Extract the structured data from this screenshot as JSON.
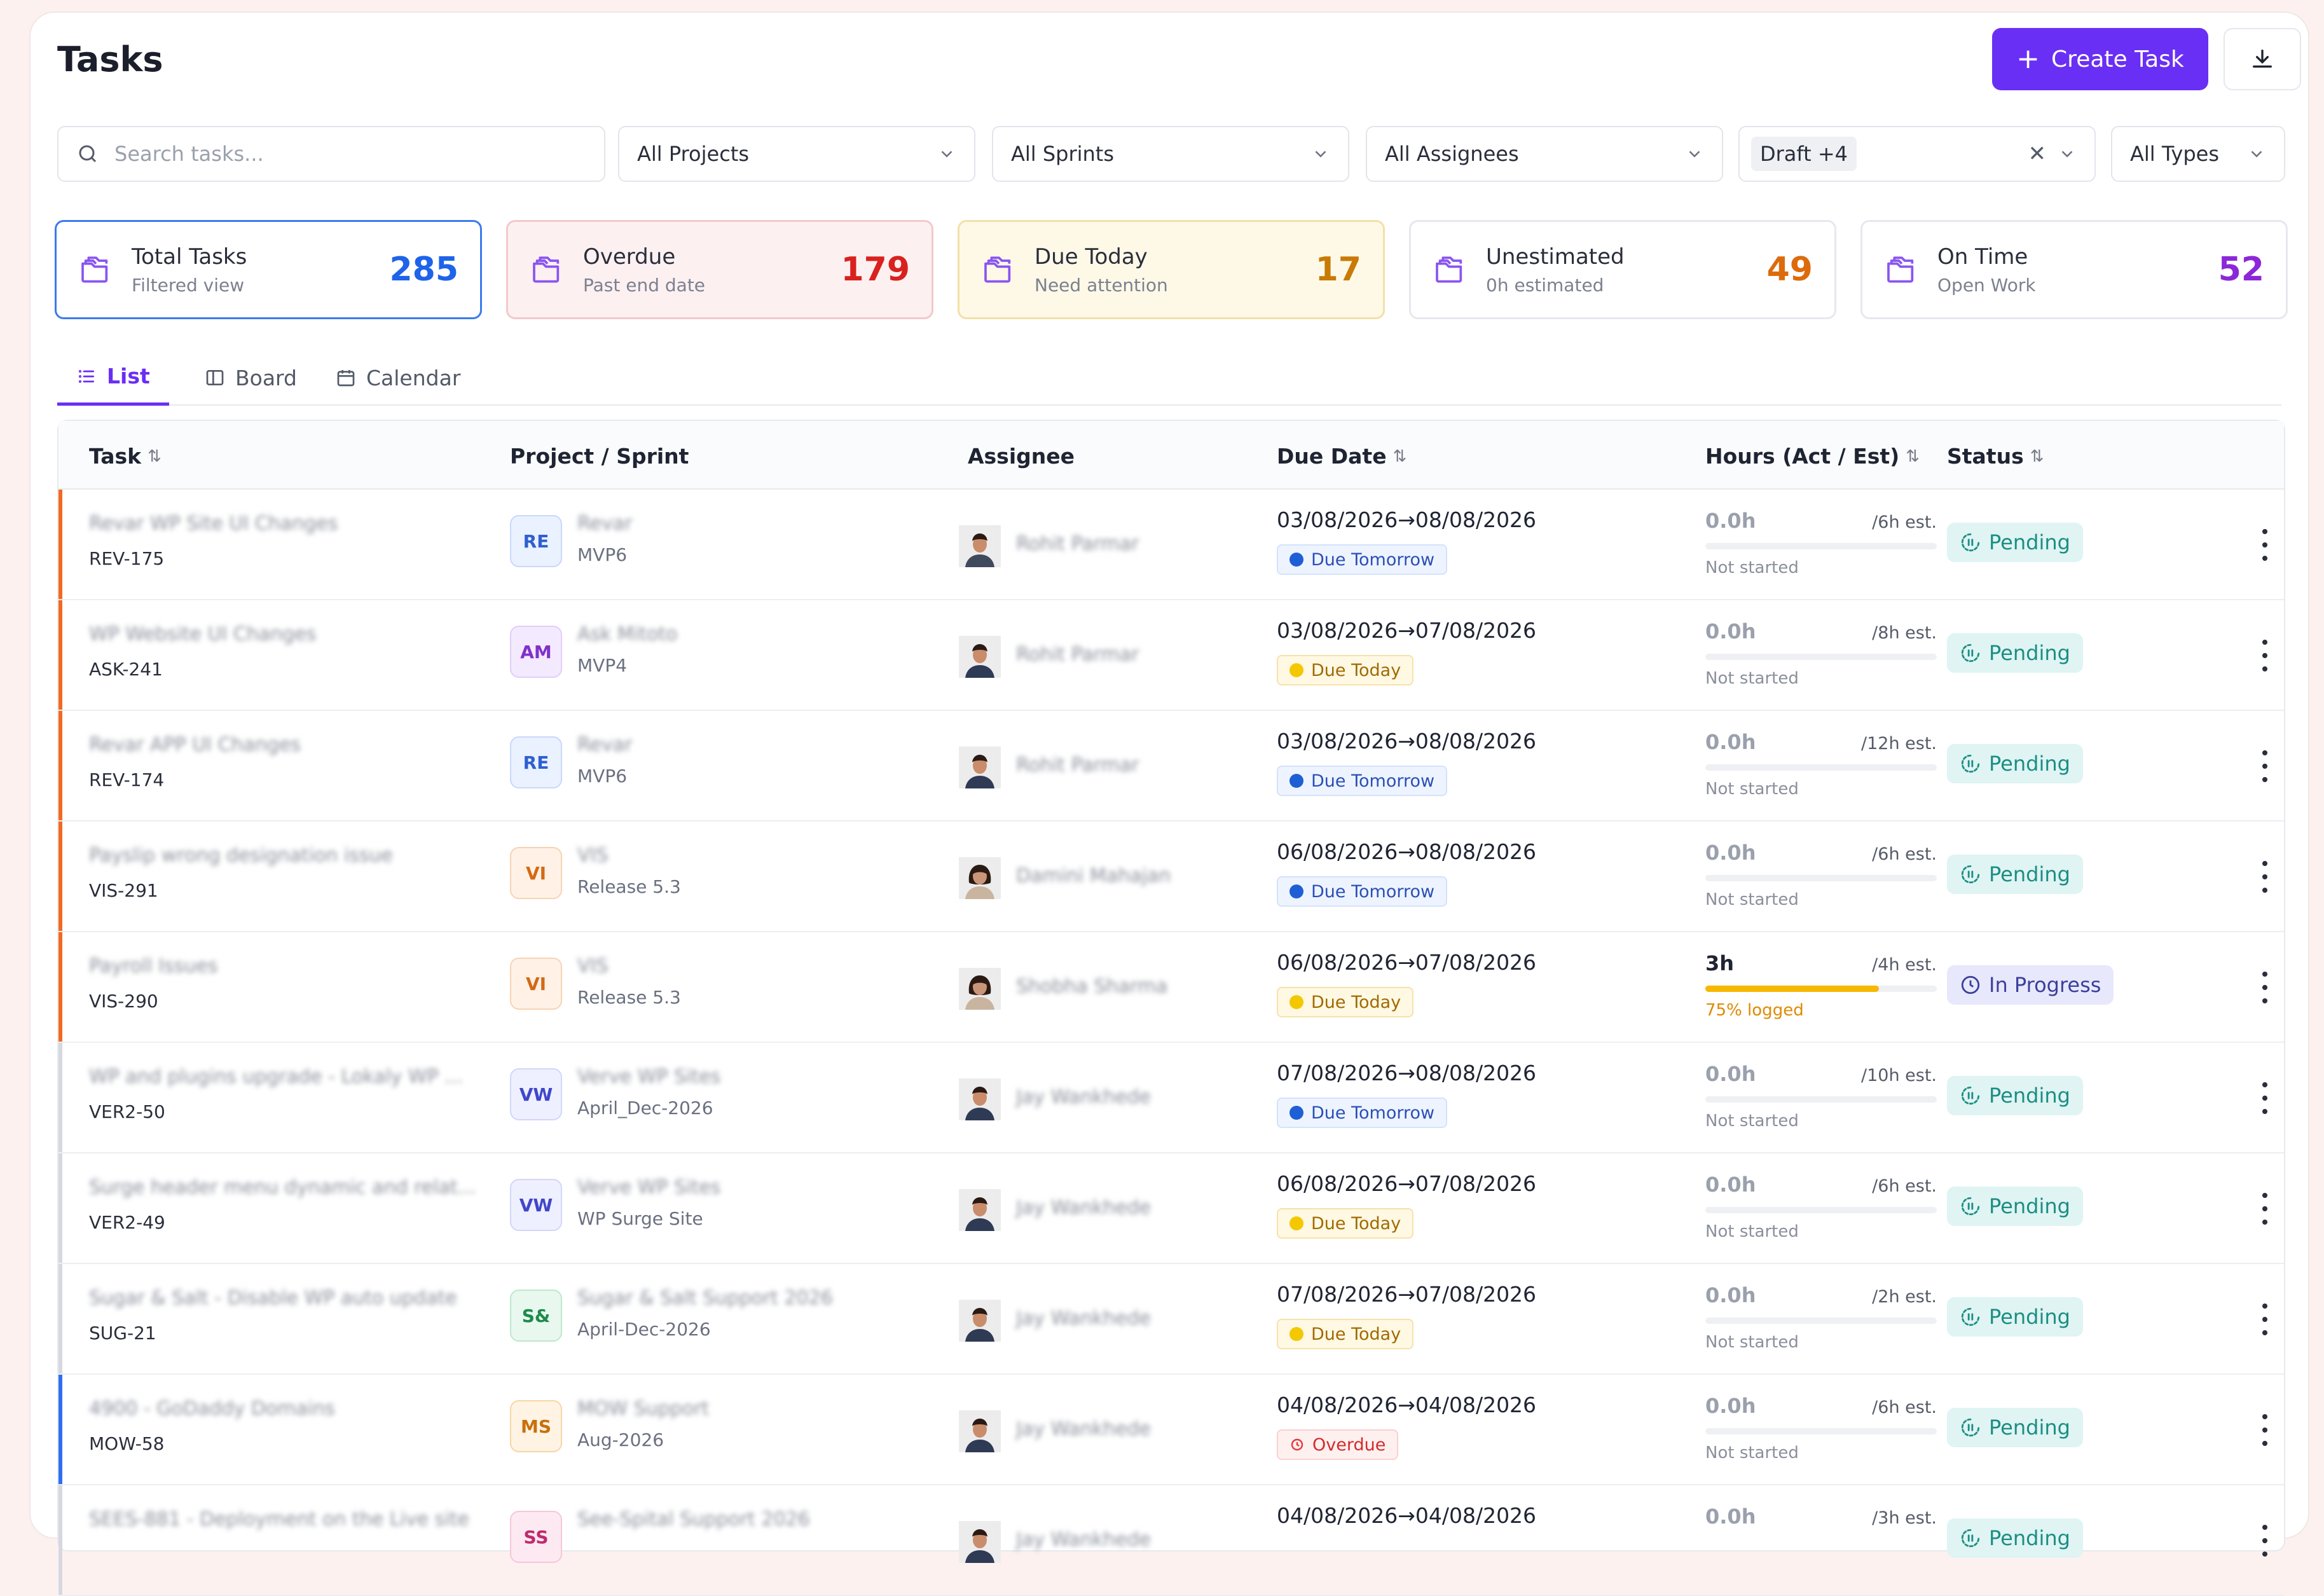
{
  "header": {
    "title": "Tasks",
    "create_label": "Create Task"
  },
  "filters": {
    "search_placeholder": "Search tasks...",
    "projects": "All Projects",
    "sprints": "All Sprints",
    "assignees": "All Assignees",
    "status_chip": "Draft +4",
    "types": "All Types"
  },
  "stats": [
    {
      "name": "Total Tasks",
      "sub": "Filtered view",
      "value": "285",
      "color": "#1e63e9",
      "border": "#3a7bef",
      "bg": "#ffffff"
    },
    {
      "name": "Overdue",
      "sub": "Past end date",
      "value": "179",
      "color": "#d9211e",
      "border": "#f2c9cb",
      "bg": "#fdf0f1"
    },
    {
      "name": "Due Today",
      "sub": "Need attention",
      "value": "17",
      "color": "#c87a05",
      "border": "#f3e0a8",
      "bg": "#fef9e7"
    },
    {
      "name": "Unestimated",
      "sub": "0h estimated",
      "value": "49",
      "color": "#dd6b0c",
      "border": "#e6e8ee",
      "bg": "#ffffff"
    },
    {
      "name": "On Time",
      "sub": "Open Work",
      "value": "52",
      "color": "#8c27d8",
      "border": "#e6e8ee",
      "bg": "#ffffff"
    }
  ],
  "tabs": {
    "list": "List",
    "board": "Board",
    "calendar": "Calendar"
  },
  "columns": {
    "task": "Task",
    "project": "Project / Sprint",
    "assignee": "Assignee",
    "due": "Due Date",
    "hours": "Hours (Act / Est)",
    "status": "Status"
  },
  "rows": [
    {
      "task": "Revar WP Site UI Changes",
      "id": "REV-175",
      "abbr": "RE",
      "project": "Revar",
      "sprint": "MVP6",
      "assignee": "Rohit Parmar",
      "dates": "03/08/2026→08/08/2026",
      "due_label": "Due Tomorrow",
      "due_kind": "tomorrow",
      "hours": "0.0h",
      "est": "/6h est.",
      "note": "Not started",
      "progress": 0,
      "status": "Pending",
      "status_kind": "pending",
      "stripe": "#f26a21",
      "avatar": "m1"
    },
    {
      "task": "WP Website UI Changes",
      "id": "ASK-241",
      "abbr": "AM",
      "project": "Ask Mitoto",
      "sprint": "MVP4",
      "assignee": "Rohit Parmar",
      "dates": "03/08/2026→07/08/2026",
      "due_label": "Due Today",
      "due_kind": "today",
      "hours": "0.0h",
      "est": "/8h est.",
      "note": "Not started",
      "progress": 0,
      "status": "Pending",
      "status_kind": "pending",
      "stripe": "#f26a21",
      "avatar": "m2"
    },
    {
      "task": "Revar APP UI Changes",
      "id": "REV-174",
      "abbr": "RE",
      "project": "Revar",
      "sprint": "MVP6",
      "assignee": "Rohit Parmar",
      "dates": "03/08/2026→08/08/2026",
      "due_label": "Due Tomorrow",
      "due_kind": "tomorrow",
      "hours": "0.0h",
      "est": "/12h est.",
      "note": "Not started",
      "progress": 0,
      "status": "Pending",
      "status_kind": "pending",
      "stripe": "#f26a21",
      "avatar": "m2"
    },
    {
      "task": "Payslip wrong designation issue",
      "id": "VIS-291",
      "abbr": "VI",
      "project": "VIS",
      "sprint": "Release 5.3",
      "assignee": "Damini Mahajan",
      "dates": "06/08/2026→08/08/2026",
      "due_label": "Due Tomorrow",
      "due_kind": "tomorrow",
      "hours": "0.0h",
      "est": "/6h est.",
      "note": "Not started",
      "progress": 0,
      "status": "Pending",
      "status_kind": "pending",
      "stripe": "#f26a21",
      "avatar": "f1"
    },
    {
      "task": "Payroll Issues",
      "id": "VIS-290",
      "abbr": "VI",
      "project": "VIS",
      "sprint": "Release 5.3",
      "assignee": "Shobha Sharma",
      "dates": "06/08/2026→07/08/2026",
      "due_label": "Due Today",
      "due_kind": "today",
      "hours": "3h",
      "est": "/4h est.",
      "note": "75% logged",
      "progress": 0.75,
      "status": "In Progress",
      "status_kind": "inprog",
      "stripe": "#f26a21",
      "avatar": "f2"
    },
    {
      "task": "WP and plugins upgrade - Lokaly WP ...",
      "id": "VER2-50",
      "abbr": "VW",
      "project": "Verve WP Sites",
      "sprint": "April_Dec-2026",
      "assignee": "Jay Wankhede",
      "dates": "07/08/2026→08/08/2026",
      "due_label": "Due Tomorrow",
      "due_kind": "tomorrow",
      "hours": "0.0h",
      "est": "/10h est.",
      "note": "Not started",
      "progress": 0,
      "status": "Pending",
      "status_kind": "pending",
      "stripe": "#d6d8e0",
      "avatar": "m3"
    },
    {
      "task": "Surge header menu dynamic and relat...",
      "id": "VER2-49",
      "abbr": "VW",
      "project": "Verve WP Sites",
      "sprint": "WP Surge Site",
      "assignee": "Jay Wankhede",
      "dates": "06/08/2026→07/08/2026",
      "due_label": "Due Today",
      "due_kind": "today",
      "hours": "0.0h",
      "est": "/6h est.",
      "note": "Not started",
      "progress": 0,
      "status": "Pending",
      "status_kind": "pending",
      "stripe": "#d6d8e0",
      "avatar": "m3"
    },
    {
      "task": "Sugar & Salt - Disable WP auto update",
      "id": "SUG-21",
      "abbr": "S&",
      "project": "Sugar & Salt Support 2026",
      "sprint": "April-Dec-2026",
      "assignee": "Jay Wankhede",
      "dates": "07/08/2026→07/08/2026",
      "due_label": "Due Today",
      "due_kind": "today",
      "hours": "0.0h",
      "est": "/2h est.",
      "note": "Not started",
      "progress": 0,
      "status": "Pending",
      "status_kind": "pending",
      "stripe": "#d6d8e0",
      "avatar": "m3"
    },
    {
      "task": "4900 - GoDaddy Domains",
      "id": "MOW-58",
      "abbr": "MS",
      "project": "MOW Support",
      "sprint": "Aug-2026",
      "assignee": "Jay Wankhede",
      "dates": "04/08/2026→04/08/2026",
      "due_label": "Overdue",
      "due_kind": "overdue",
      "hours": "0.0h",
      "est": "/6h est.",
      "note": "Not started",
      "progress": 0,
      "status": "Pending",
      "status_kind": "pending",
      "stripe": "#2f6ef0",
      "avatar": "m3"
    },
    {
      "task": "SEES-881 - Deployment on the Live site",
      "id": "",
      "abbr": "SS",
      "project": "See-Spital Support 2026",
      "sprint": "",
      "assignee": "Jay Wankhede",
      "dates": "04/08/2026→04/08/2026",
      "due_label": "",
      "due_kind": "none",
      "hours": "0.0h",
      "est": "/3h est.",
      "note": "",
      "progress": 0,
      "status": "Pending",
      "status_kind": "pending",
      "stripe": "#d6d8e0",
      "avatar": "m3"
    }
  ],
  "badge_colors": {
    "RE": {
      "bg": "#eaf1ff",
      "fg": "#2f5fd0",
      "bd": "#c9d8fb"
    },
    "AM": {
      "bg": "#f4eaff",
      "fg": "#8130c9",
      "bd": "#e1cdfa"
    },
    "VI": {
      "bg": "#fff1e6",
      "fg": "#d26a16",
      "bd": "#f7d3b4"
    },
    "VW": {
      "bg": "#eef0ff",
      "fg": "#4047c8",
      "bd": "#d3d6fb"
    },
    "S&": {
      "bg": "#e8f8ee",
      "fg": "#1d8a4a",
      "bd": "#bfe7cd"
    },
    "MS": {
      "bg": "#fff3e3",
      "fg": "#c8700e",
      "bd": "#f6d6a9"
    },
    "SS": {
      "bg": "#fde9f2",
      "fg": "#c02a6c",
      "bd": "#f6c6da"
    }
  },
  "due_colors": {
    "tomorrow": {
      "bg": "#eef4ff",
      "fg": "#2a4fb7",
      "bd": "#d4e2fb",
      "dot": "#1f5fd6"
    },
    "today": {
      "bg": "#fff8e3",
      "fg": "#a06a00",
      "bd": "#f5e2ab",
      "dot": "#f4c800"
    },
    "overdue": {
      "bg": "#fff0f0",
      "fg": "#d42b2b",
      "bd": "#f8d1d1",
      "dot": "#e23b3b"
    }
  }
}
